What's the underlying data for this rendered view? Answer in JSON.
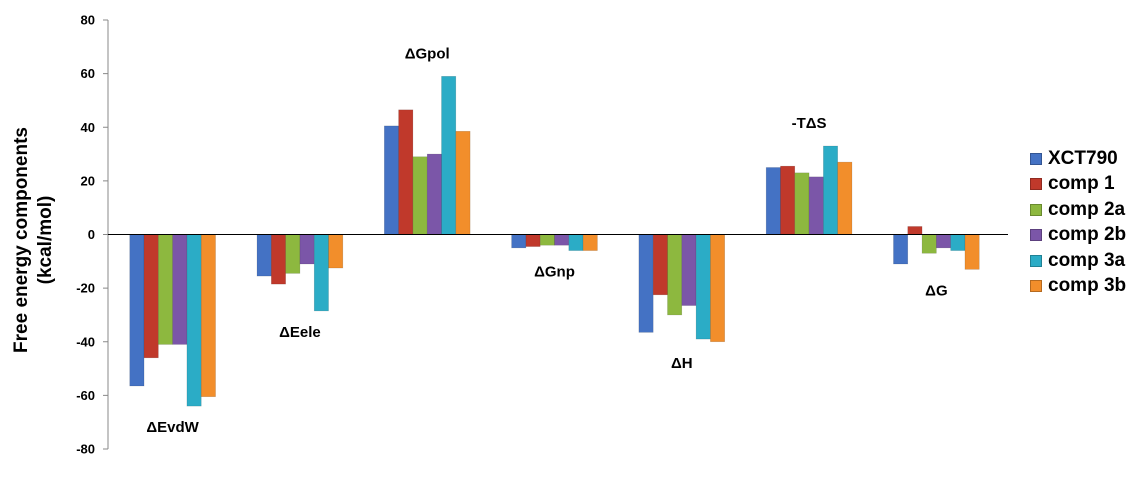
{
  "chart_data": {
    "type": "bar",
    "ylabel_lines": [
      "Free energy components",
      "(kcal/mol)"
    ],
    "ylim": [
      -80,
      80
    ],
    "yticks": [
      "80",
      "60",
      "40",
      "20",
      "0",
      "-20",
      "-40",
      "-60",
      "-80"
    ],
    "ytick_values": [
      80,
      60,
      40,
      20,
      0,
      -20,
      -40,
      -60,
      -80
    ],
    "grid": false,
    "legend_position": "right",
    "categories": [
      "ΔEvdW",
      "ΔEele",
      "ΔGpol",
      "ΔGnp",
      "ΔH",
      "-TΔS",
      "ΔG"
    ],
    "series": [
      {
        "name": "XCT790",
        "color": "#4472C4",
        "values": [
          -56.5,
          -15.5,
          40.5,
          -5.0,
          -36.5,
          25.0,
          -11.0
        ]
      },
      {
        "name": "comp 1",
        "color": "#C0392B",
        "values": [
          -46.0,
          -18.5,
          46.5,
          -4.5,
          -22.5,
          25.5,
          3.0
        ]
      },
      {
        "name": "comp 2a",
        "color": "#8DB83F",
        "values": [
          -41.0,
          -14.5,
          29.0,
          -4.0,
          -30.0,
          23.0,
          -7.0
        ]
      },
      {
        "name": "comp 2b",
        "color": "#7B56A8",
        "values": [
          -41.0,
          -11.0,
          30.0,
          -4.0,
          -26.5,
          21.5,
          -5.0
        ]
      },
      {
        "name": "comp 3a",
        "color": "#2BACC6",
        "values": [
          -64.0,
          -28.5,
          59.0,
          -6.0,
          -39.0,
          33.0,
          -6.0
        ]
      },
      {
        "name": "comp 3b",
        "color": "#F28E2B",
        "values": [
          -60.5,
          -12.5,
          38.5,
          -6.0,
          -40.0,
          27.0,
          -13.0
        ]
      }
    ]
  }
}
